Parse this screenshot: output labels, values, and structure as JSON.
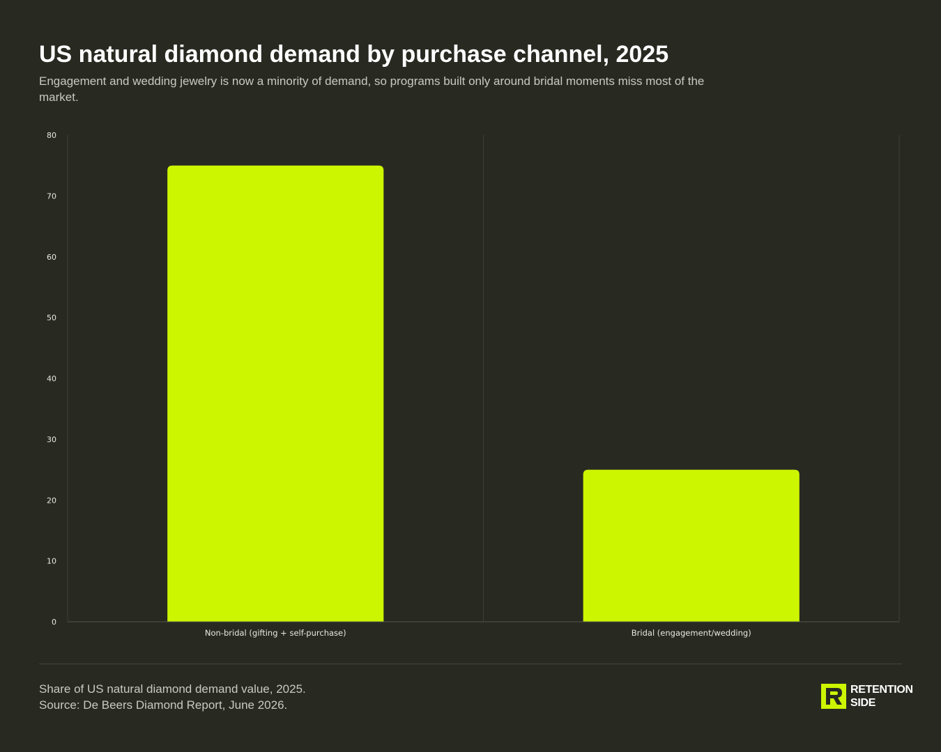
{
  "header": {
    "title": "US natural diamond demand by purchase channel, 2025",
    "subtitle": "Engagement and wedding jewelry is now a minority of demand, so programs built only around bridal moments miss most of the market."
  },
  "chart_data": {
    "type": "bar",
    "title": "US natural diamond demand by purchase channel, 2025",
    "xlabel": "",
    "ylabel": "",
    "categories": [
      "Non-bridal (gifting + self-purchase)",
      "Bridal (engagement/wedding)"
    ],
    "values": [
      75,
      25
    ],
    "ylim": [
      0,
      80
    ],
    "yticks": [
      0,
      10,
      20,
      30,
      40,
      50,
      60,
      70,
      80
    ],
    "grid": true,
    "legend": "none",
    "bar_color": "#ccf500"
  },
  "footer": {
    "note": "Share of US natural diamond demand value, 2025.",
    "source": "Source: De Beers Diamond Report, June 2026."
  },
  "brand": {
    "line1": "RETENTION",
    "line2": "SIDE",
    "icon": "retention-side-logo-icon"
  },
  "colors": {
    "background": "#282a22",
    "accent": "#ccf500",
    "grid": "#3e4037",
    "text_muted": "#c9c9c2"
  }
}
